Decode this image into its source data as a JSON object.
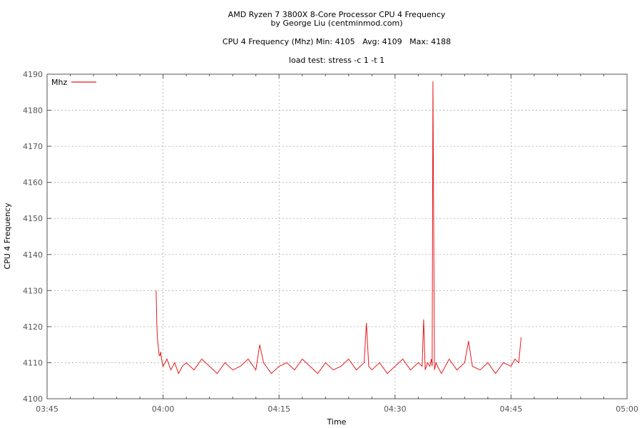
{
  "chart_data": {
    "type": "line",
    "title_lines": [
      "AMD Ryzen 7 3800X 8-Core Processor CPU 4 Frequency",
      "by George Liu (centminmod.com)",
      "CPU 4 Frequency (Mhz) Min: 4105   Avg: 4109   Max: 4188",
      "load test: stress -c 1 -t 1"
    ],
    "xlabel": "Time",
    "ylabel": "CPU 4 Frequency",
    "xlim": [
      "03:45",
      "05:00"
    ],
    "ylim": [
      4100,
      4190
    ],
    "x_ticks": [
      "03:45",
      "04:00",
      "04:15",
      "04:30",
      "04:45",
      "05:00"
    ],
    "y_ticks": [
      4100,
      4110,
      4120,
      4130,
      4140,
      4150,
      4160,
      4170,
      4180,
      4190
    ],
    "grid": true,
    "legend_position": "top-left",
    "series": [
      {
        "name": "Mhz",
        "color": "#e41a1c",
        "summary": {
          "min": 4105,
          "avg": 4109,
          "max": 4188
        },
        "x": [
          "03:59:06",
          "03:59:12",
          "03:59:18",
          "03:59:24",
          "03:59:30",
          "03:59:36",
          "03:59:42",
          "03:59:48",
          "03:59:54",
          "04:00:00",
          "04:00:30",
          "04:01:00",
          "04:01:30",
          "04:02:00",
          "04:02:30",
          "04:03:00",
          "04:04:00",
          "04:05:00",
          "04:06:00",
          "04:07:00",
          "04:08:00",
          "04:09:00",
          "04:10:00",
          "04:11:00",
          "04:12:00",
          "04:12:30",
          "04:13:00",
          "04:14:00",
          "04:15:00",
          "04:16:00",
          "04:17:00",
          "04:18:00",
          "04:19:00",
          "04:20:00",
          "04:21:00",
          "04:22:00",
          "04:23:00",
          "04:24:00",
          "04:25:00",
          "04:26:00",
          "04:26:18",
          "04:26:36",
          "04:27:00",
          "04:28:00",
          "04:29:00",
          "04:30:00",
          "04:31:00",
          "04:32:00",
          "04:33:00",
          "04:33:30",
          "04:33:42",
          "04:33:54",
          "04:34:12",
          "04:34:30",
          "04:34:42",
          "04:34:48",
          "04:34:54",
          "04:35:06",
          "04:35:18",
          "04:35:30",
          "04:36:00",
          "04:37:00",
          "04:38:00",
          "04:39:00",
          "04:39:30",
          "04:40:00",
          "04:41:00",
          "04:42:00",
          "04:43:00",
          "04:44:00",
          "04:45:00",
          "04:45:30",
          "04:46:00",
          "04:46:18"
        ],
        "y": [
          4130,
          4120,
          4116,
          4114,
          4112,
          4112,
          4113,
          4111,
          4110,
          4109,
          4111,
          4108,
          4110,
          4107,
          4109,
          4110,
          4108,
          4111,
          4109,
          4107,
          4110,
          4108,
          4109,
          4111,
          4108,
          4115,
          4110,
          4107,
          4109,
          4110,
          4108,
          4111,
          4109,
          4107,
          4110,
          4108,
          4109,
          4111,
          4108,
          4110,
          4121,
          4109,
          4108,
          4110,
          4107,
          4109,
          4111,
          4108,
          4110,
          4109,
          4122,
          4108,
          4110,
          4109,
          4111,
          4109,
          4188,
          4108,
          4110,
          4109,
          4107,
          4111,
          4108,
          4110,
          4116,
          4109,
          4108,
          4110,
          4107,
          4110,
          4109,
          4111,
          4110,
          4117
        ]
      }
    ]
  }
}
